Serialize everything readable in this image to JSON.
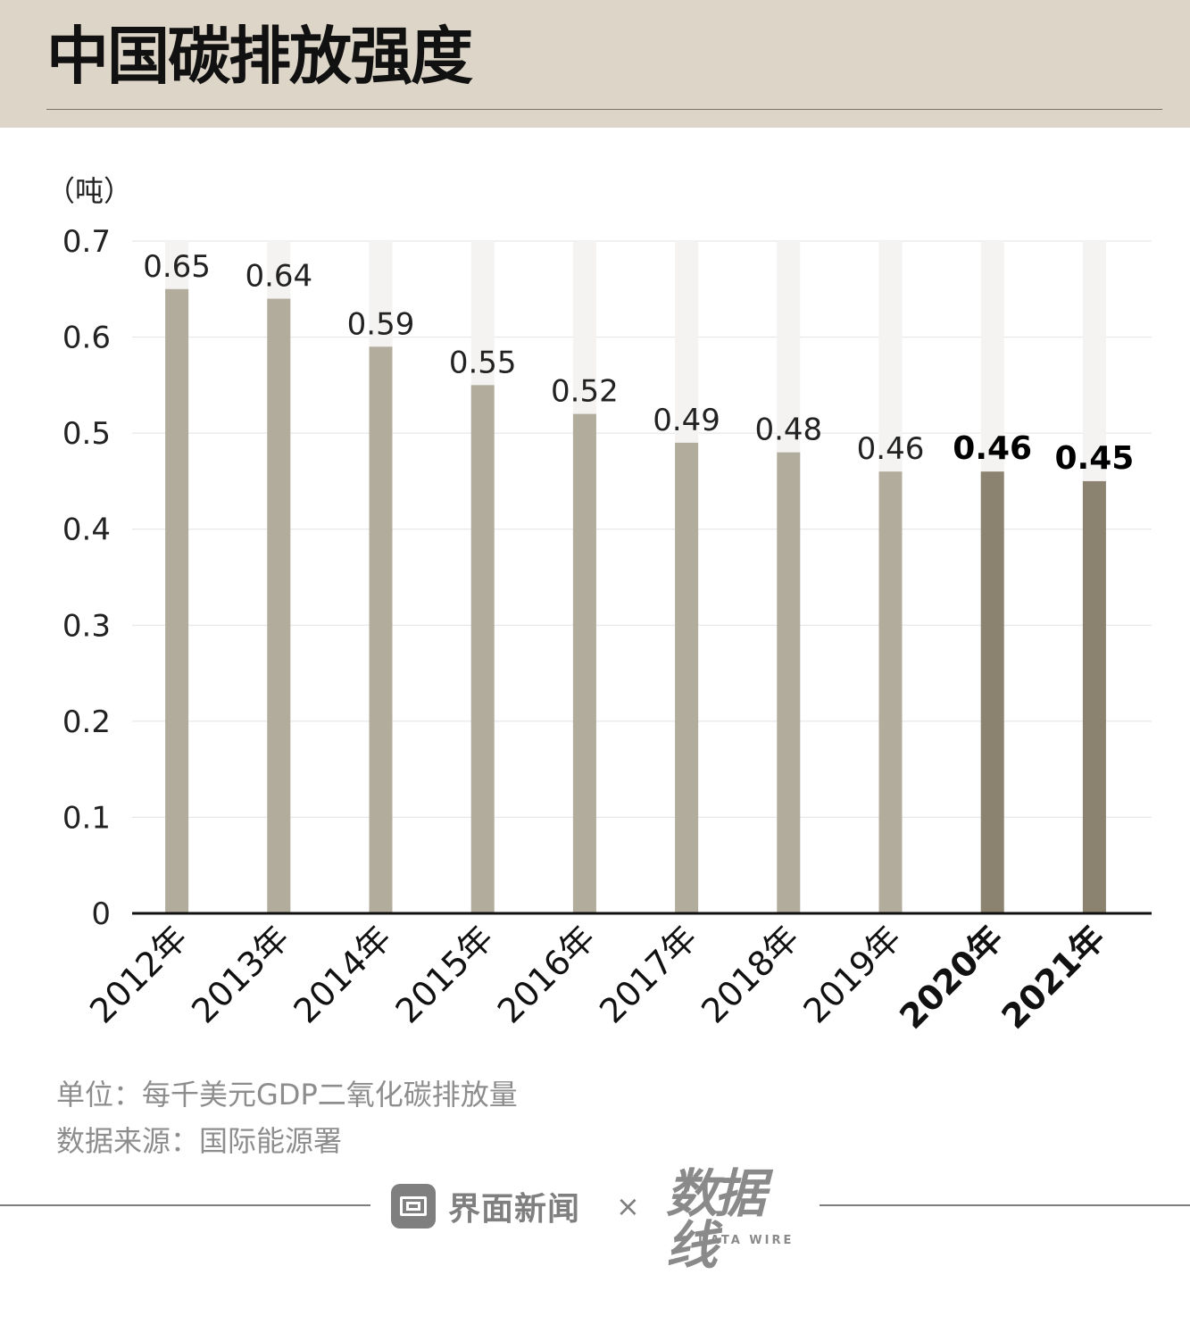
{
  "header": {
    "title": "中国碳排放强度"
  },
  "chart_data": {
    "type": "bar",
    "unit_label": "（吨）",
    "categories": [
      "2012年",
      "2013年",
      "2014年",
      "2015年",
      "2016年",
      "2017年",
      "2018年",
      "2019年",
      "2020年",
      "2021年"
    ],
    "values": [
      0.65,
      0.64,
      0.59,
      0.55,
      0.52,
      0.49,
      0.48,
      0.46,
      0.46,
      0.45
    ],
    "value_labels": [
      "0.65",
      "0.64",
      "0.59",
      "0.55",
      "0.52",
      "0.49",
      "0.48",
      "0.46",
      "0.46",
      "0.45"
    ],
    "highlight": [
      false,
      false,
      false,
      false,
      false,
      false,
      false,
      false,
      true,
      true
    ],
    "ylim": [
      0,
      0.7
    ],
    "yticks": [
      "0",
      "0.1",
      "0.2",
      "0.3",
      "0.4",
      "0.5",
      "0.6",
      "0.7"
    ],
    "grid": true,
    "colors": {
      "bar": "#b2ac9c",
      "bar_highlight": "#8b8370",
      "track": "#f4f3f1",
      "grid": "#e2e2e2",
      "axis": "#111111"
    }
  },
  "notes": {
    "unit": "单位：每千美元GDP二氧化碳排放量",
    "source": "数据来源：国际能源署"
  },
  "footer": {
    "brand_name": "界面新闻",
    "separator": "×",
    "logo_text": "数据线",
    "logo_sub": "DATA WIRE"
  }
}
